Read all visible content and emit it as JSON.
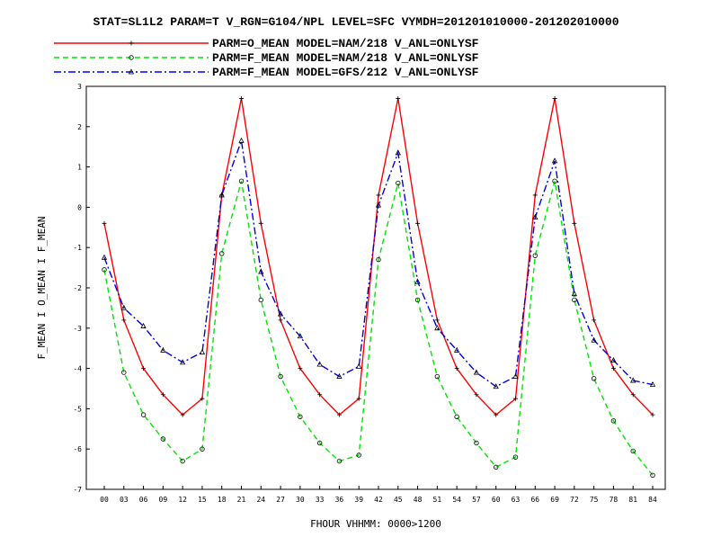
{
  "chart_data": {
    "type": "line",
    "title": "STAT=SL1L2 PARAM=T V_RGN=G104/NPL LEVEL=SFC VYMDH=201201010000-201202010000",
    "xlabel": "FHOUR VHHMM: 0000>1200",
    "ylabel": "F_MEAN I O_MEAN I F_MEAN",
    "categories": [
      "00",
      "03",
      "06",
      "09",
      "12",
      "15",
      "18",
      "21",
      "24",
      "27",
      "30",
      "33",
      "36",
      "39",
      "42",
      "45",
      "48",
      "51",
      "54",
      "57",
      "60",
      "63",
      "66",
      "69",
      "72",
      "75",
      "78",
      "81",
      "84"
    ],
    "yticks": [
      "-7",
      "-6",
      "-5",
      "-4",
      "-3",
      "-2",
      "-1",
      "0",
      "1",
      "2",
      "3"
    ],
    "ylim": [
      -7,
      3
    ],
    "grid": false,
    "legend_position": "top",
    "series": [
      {
        "name": "PARM=O_MEAN MODEL=NAM/218 V_ANL=ONLYSF",
        "color": "#ff0000",
        "dash": "solid",
        "marker": "plus",
        "values": [
          -0.4,
          -2.8,
          -4.0,
          -4.65,
          -5.15,
          -4.75,
          0.3,
          2.7,
          -0.4,
          -2.8,
          -4.0,
          -4.65,
          -5.15,
          -4.75,
          0.3,
          2.7,
          -0.4,
          -2.8,
          -4.0,
          -4.65,
          -5.15,
          -4.75,
          0.3,
          2.7,
          -0.4,
          -2.8,
          -4.0,
          -4.65,
          -5.15
        ]
      },
      {
        "name": "PARM=F_MEAN MODEL=NAM/218 V_ANL=ONLYSF",
        "color": "#00e600",
        "dash": "dashed",
        "marker": "circle",
        "values": [
          -1.55,
          -4.1,
          -5.15,
          -5.75,
          -6.3,
          -6.0,
          -1.15,
          0.65,
          -2.3,
          -4.2,
          -5.2,
          -5.85,
          -6.3,
          -6.15,
          -1.3,
          0.6,
          -2.3,
          -4.2,
          -5.2,
          -5.85,
          -6.45,
          -6.2,
          -1.2,
          0.65,
          -2.3,
          -4.25,
          -5.3,
          -6.05,
          -6.65
        ]
      },
      {
        "name": "PARM=F_MEAN MODEL=GFS/212 V_ANL=ONLYSF",
        "color": "#0000e6",
        "dash": "dashdot",
        "marker": "triangle",
        "values": [
          -1.25,
          -2.5,
          -2.95,
          -3.55,
          -3.85,
          -3.6,
          0.3,
          1.65,
          -1.6,
          -2.65,
          -3.2,
          -3.9,
          -4.2,
          -3.95,
          0.05,
          1.35,
          -1.85,
          -3.0,
          -3.55,
          -4.1,
          -4.45,
          -4.2,
          -0.25,
          1.15,
          -2.15,
          -3.3,
          -3.8,
          -4.3,
          -4.4
        ]
      }
    ]
  }
}
